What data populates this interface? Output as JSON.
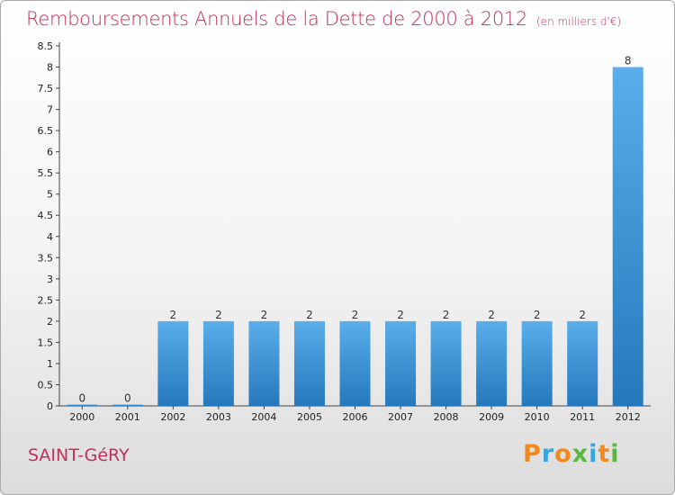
{
  "header": {
    "title": "Remboursements Annuels de la Dette de 2000 à 2012",
    "unit": "(en milliers d'€)"
  },
  "footer": {
    "place": "SAINT-GéRY",
    "logo": "Proxiti"
  },
  "colors": {
    "title": "#c0305a",
    "bar_top": "#5aaeea",
    "bar_bottom": "#2578bb",
    "logo_letters": [
      "#f08a1c",
      "#3aa6e0",
      "#f08a1c",
      "#5ab843",
      "#3aa6e0",
      "#f08a1c",
      "#5ab843"
    ]
  },
  "chart_data": {
    "type": "bar",
    "title": "Remboursements Annuels de la Dette de 2000 à 2012",
    "subtitle": "(en milliers d'€)",
    "categories": [
      "2000",
      "2001",
      "2002",
      "2003",
      "2004",
      "2005",
      "2006",
      "2007",
      "2008",
      "2009",
      "2010",
      "2011",
      "2012"
    ],
    "values": [
      0,
      0,
      2,
      2,
      2,
      2,
      2,
      2,
      2,
      2,
      2,
      2,
      8
    ],
    "data_labels": [
      "0",
      "0",
      "2",
      "2",
      "2",
      "2",
      "2",
      "2",
      "2",
      "2",
      "2",
      "2",
      "8"
    ],
    "ylim": [
      0,
      8.5
    ],
    "yticks": [
      "0",
      "0.5",
      "1",
      "1.5",
      "2",
      "2.5",
      "3",
      "3.5",
      "4",
      "4.5",
      "5",
      "5.5",
      "6",
      "6.5",
      "7",
      "7.5",
      "8",
      "8.5"
    ],
    "xlabel": "",
    "ylabel": "",
    "grid": false,
    "legend": "none"
  }
}
